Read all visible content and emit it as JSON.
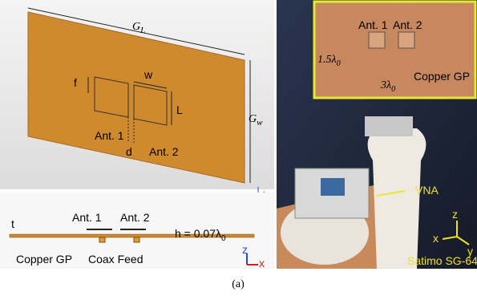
{
  "model": {
    "gl": {
      "base": "G",
      "sub": "L"
    },
    "gw": {
      "base": "G",
      "sub": "w"
    },
    "f": "f",
    "w": "w",
    "l": "L",
    "ant1": "Ant. 1",
    "ant2": "Ant. 2",
    "d": "d"
  },
  "side": {
    "t": "t",
    "ant1": "Ant. 1",
    "ant2": "Ant. 2",
    "h": {
      "base": "h = 0.07λ",
      "sub": "0"
    },
    "gp": "Copper GP",
    "feed": "Coax Feed"
  },
  "axes": {
    "x": "x",
    "y": "y",
    "z": "z"
  },
  "photo": {
    "ant1": "Ant. 1",
    "ant2": "Ant. 2",
    "height": {
      "base": "1.5λ",
      "sub": "0"
    },
    "width": {
      "base": "3λ",
      "sub": "0"
    },
    "gp": "Copper GP",
    "vna": "VNA",
    "satimo": "Satimo SG-64"
  },
  "caption": "(a)"
}
